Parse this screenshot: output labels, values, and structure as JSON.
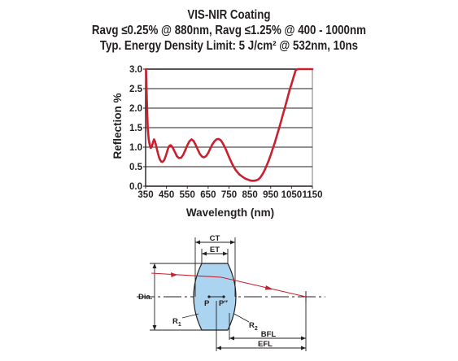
{
  "title_lines": [
    "VIS-NIR Coating",
    "Ravg ≤0.25% @ 880nm, Ravg ≤1.25% @ 400 - 1000nm",
    "Typ. Energy Density Limit: 5 J/cm² @ 532nm, 10ns"
  ],
  "colors": {
    "curve": "#c8202f",
    "grid": "#231f20",
    "lens_fill": "#aad4ef",
    "ray": "#c8202f"
  },
  "chart_data": {
    "type": "line",
    "title": "VIS-NIR Coating",
    "xlabel": "Wavelength (nm)",
    "ylabel": "Reflection %",
    "xlim": [
      350,
      1150
    ],
    "ylim": [
      0.0,
      3.0
    ],
    "x_ticks": [
      "350",
      "450",
      "550",
      "650",
      "750",
      "850",
      "950",
      "1050",
      "1150"
    ],
    "y_ticks": [
      "0.0",
      "0.5",
      "1.0",
      "1.5",
      "2.0",
      "2.5",
      "3.0"
    ],
    "grid": "horizontal",
    "series": [
      {
        "x": [
          352,
          356,
          360,
          365,
          370,
          375,
          380,
          385,
          390,
          395,
          400,
          405,
          410,
          415,
          420,
          425,
          430,
          435,
          440,
          445,
          450,
          455,
          460,
          465,
          470,
          475,
          480,
          490,
          500,
          510,
          520,
          530,
          540,
          550,
          560,
          570,
          580,
          590,
          600,
          610,
          620,
          630,
          640,
          650,
          660,
          670,
          680,
          690,
          700,
          710,
          720,
          730,
          740,
          750,
          760,
          770,
          780,
          790,
          800,
          810,
          820,
          830,
          840,
          850,
          860,
          870,
          880,
          890,
          900,
          910,
          920,
          930,
          940,
          950,
          960,
          970,
          980,
          990,
          1000,
          1010,
          1020,
          1030,
          1040,
          1050,
          1060,
          1070,
          1080,
          1090,
          1100,
          1110,
          1120,
          1130,
          1140,
          1150
        ],
        "values": [
          3.0,
          2.2,
          1.5,
          1.2,
          1.05,
          0.98,
          1.02,
          1.12,
          1.2,
          1.15,
          1.05,
          0.93,
          0.82,
          0.73,
          0.67,
          0.63,
          0.62,
          0.64,
          0.68,
          0.75,
          0.83,
          0.92,
          1.0,
          1.04,
          1.05,
          1.03,
          0.99,
          0.88,
          0.77,
          0.72,
          0.73,
          0.8,
          0.92,
          1.05,
          1.15,
          1.2,
          1.16,
          1.06,
          0.94,
          0.83,
          0.76,
          0.74,
          0.77,
          0.85,
          0.96,
          1.07,
          1.15,
          1.2,
          1.21,
          1.18,
          1.1,
          1.0,
          0.88,
          0.75,
          0.63,
          0.52,
          0.43,
          0.36,
          0.3,
          0.26,
          0.22,
          0.19,
          0.17,
          0.15,
          0.14,
          0.14,
          0.15,
          0.17,
          0.22,
          0.3,
          0.4,
          0.52,
          0.65,
          0.8,
          0.96,
          1.12,
          1.3,
          1.48,
          1.67,
          1.86,
          2.05,
          2.25,
          2.45,
          2.62,
          2.8,
          2.97,
          3.0,
          3.0,
          3.0,
          3.0,
          3.0,
          3.0,
          3.0,
          3.0
        ]
      }
    ]
  },
  "diagram": {
    "labels": {
      "ct": "CT",
      "et": "ET",
      "dia": "Dia.",
      "p": "P",
      "p_prime": "P″",
      "r1": "R",
      "r1_sub": "1",
      "r2": "R",
      "r2_sub": "2",
      "bfl": "BFL",
      "efl": "EFL"
    }
  }
}
